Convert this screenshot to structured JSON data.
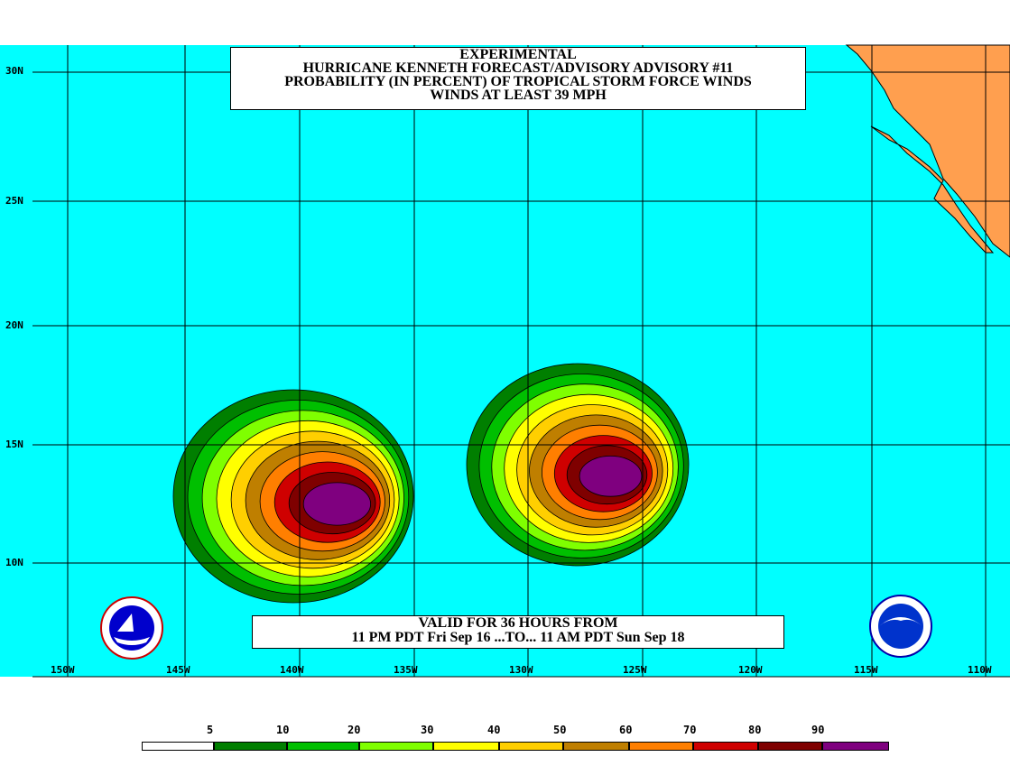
{
  "title": {
    "line1": "EXPERIMENTAL",
    "line2": "HURRICANE KENNETH FORECAST/ADVISORY ADVISORY #11",
    "line3": "PROBABILITY (IN PERCENT) OF TROPICAL STORM FORCE WINDS",
    "line4": "WINDS AT LEAST 39 MPH"
  },
  "valid": {
    "line1": "VALID FOR 36 HOURS FROM",
    "line2": "11 PM PDT Fri Sep 16 ...TO... 11 AM PDT Sun Sep 18"
  },
  "latitudes": [
    "30N",
    "25N",
    "20N",
    "15N",
    "10N"
  ],
  "longitudes": [
    "150W",
    "145W",
    "140W",
    "135W",
    "130W",
    "125W",
    "120W",
    "115W",
    "110W"
  ],
  "legend": {
    "labels": [
      "5",
      "10",
      "20",
      "30",
      "40",
      "50",
      "60",
      "70",
      "80",
      "90"
    ],
    "colors": [
      "#ffffff",
      "#007f00",
      "#00bf00",
      "#7fff00",
      "#ffff00",
      "#ffcf00",
      "#bf7f00",
      "#ff7f00",
      "#cf0000",
      "#7f0000",
      "#7f007f"
    ]
  },
  "colors": {
    "ocean": "#00ffff",
    "land": "#ff9f4f",
    "grid": "#000000"
  },
  "logos": [
    "noaa-logo-left",
    "noaa-logo-right"
  ]
}
